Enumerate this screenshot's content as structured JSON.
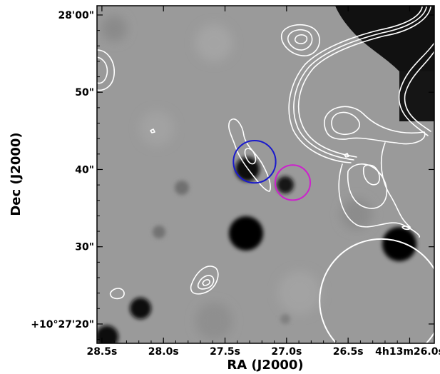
{
  "chart_data": {
    "type": "image",
    "xlabel": "RA (J2000)",
    "ylabel": "Dec (J2000)",
    "x_ticks": [
      "28.5s",
      "28.0s",
      "27.5s",
      "27.0s",
      "26.5s",
      "4h13m26.0s"
    ],
    "y_ticks": [
      "28'00\"",
      "50\"",
      "40\"",
      "30\"",
      "+10°27'20\""
    ],
    "x_tick_values_s": [
      28.5,
      28.0,
      27.5,
      27.0,
      26.5,
      26.0
    ],
    "y_tick_values_arcsec": [
      60,
      50,
      40,
      30,
      20
    ],
    "xlim_s": [
      28.54,
      25.8
    ],
    "ylim_arcsec": [
      17.5,
      61.2
    ],
    "colormap": "grayscale",
    "contours": "white",
    "markers": [
      {
        "shape": "circle",
        "color": "#1a1acc",
        "ra_s": 27.26,
        "dec_arcsec": 41.0
      },
      {
        "shape": "circle",
        "color": "#cc22cc",
        "ra_s": 26.95,
        "dec_arcsec": 38.3
      },
      {
        "shape": "circle",
        "color": "#ffffff",
        "label": "beam",
        "ra_s": 26.23,
        "dec_arcsec": 23.0
      }
    ]
  },
  "colors": {
    "background_gray": "#9a9a9a",
    "source_dark": "#050505",
    "contour": "#ffffff",
    "blue_circle": "#1a1acc",
    "magenta_circle": "#cc22cc"
  }
}
